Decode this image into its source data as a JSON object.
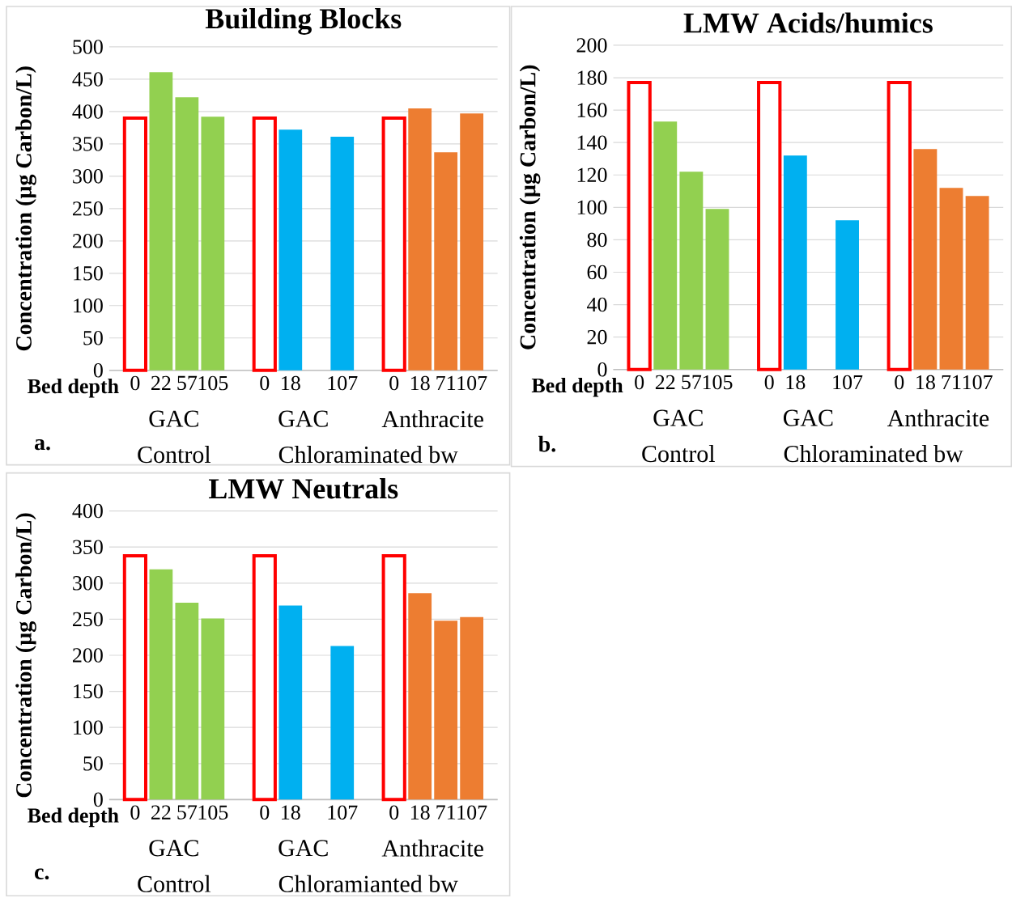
{
  "chart_data": [
    {
      "type": "bar",
      "title": "Building Blocks",
      "xlabel": "Bed depth",
      "ylabel": "Concentration (µg Carbon/L)",
      "categories": [
        "0",
        "22",
        "57",
        "105",
        null,
        "0",
        "18",
        null,
        "107",
        null,
        "0",
        "18",
        "71",
        "107"
      ],
      "series": [
        {
          "color": "#ff0000",
          "values": [
            390,
            null,
            null,
            null,
            null,
            390,
            null,
            null,
            null,
            null,
            390,
            null,
            null,
            null
          ]
        },
        {
          "color": "#92d050",
          "values": [
            null,
            461,
            422,
            392,
            null,
            null,
            null,
            null,
            null,
            null,
            null,
            null,
            null,
            null
          ]
        },
        {
          "color": "#00b0f0",
          "values": [
            null,
            null,
            null,
            null,
            null,
            null,
            372,
            null,
            361,
            null,
            null,
            null,
            null,
            null
          ]
        },
        {
          "color": "#ed7d31",
          "values": [
            null,
            null,
            null,
            null,
            null,
            null,
            null,
            null,
            null,
            null,
            null,
            405,
            337,
            397
          ]
        }
      ],
      "ylim": [
        0,
        500
      ],
      "yticks": [
        0,
        50,
        100,
        150,
        200,
        250,
        300,
        350,
        400,
        450,
        500
      ],
      "grid": "y",
      "annotations": [
        "GAC",
        "GAC",
        "Anthracite",
        "Control",
        "Chloraminated bw",
        "a."
      ]
    },
    {
      "type": "bar",
      "title": "LMW Acids/humics",
      "xlabel": "Bed depth",
      "ylabel": "Concentration (µg Carbon/L)",
      "categories": [
        "0",
        "22",
        "57",
        "105",
        null,
        "0",
        "18",
        null,
        "107",
        null,
        "0",
        "18",
        "71",
        "107"
      ],
      "series": [
        {
          "color": "#ff0000",
          "values": [
            177,
            null,
            null,
            null,
            null,
            177,
            null,
            null,
            null,
            null,
            177,
            null,
            null,
            null
          ]
        },
        {
          "color": "#92d050",
          "values": [
            null,
            153,
            122,
            99,
            null,
            null,
            null,
            null,
            null,
            null,
            null,
            null,
            null,
            null
          ]
        },
        {
          "color": "#00b0f0",
          "values": [
            null,
            null,
            null,
            null,
            null,
            null,
            132,
            null,
            92,
            null,
            null,
            null,
            null,
            null
          ]
        },
        {
          "color": "#ed7d31",
          "values": [
            null,
            null,
            null,
            null,
            null,
            null,
            null,
            null,
            null,
            null,
            null,
            136,
            112,
            107
          ]
        }
      ],
      "ylim": [
        0,
        200
      ],
      "yticks": [
        0,
        20,
        40,
        60,
        80,
        100,
        120,
        140,
        160,
        180,
        200
      ],
      "grid": "y",
      "annotations": [
        "GAC",
        "GAC",
        "Anthracite",
        "Control",
        "Chloraminated bw",
        "b."
      ]
    },
    {
      "type": "bar",
      "title": "LMW Neutrals",
      "xlabel": "Bed depth",
      "ylabel": "Concentration (µg Carbon/L)",
      "categories": [
        "0",
        "22",
        "57",
        "105",
        null,
        "0",
        "18",
        null,
        "107",
        null,
        "0",
        "18",
        "71",
        "107"
      ],
      "series": [
        {
          "color": "#ff0000",
          "values": [
            338,
            null,
            null,
            null,
            null,
            338,
            null,
            null,
            null,
            null,
            338,
            null,
            null,
            null
          ]
        },
        {
          "color": "#92d050",
          "values": [
            null,
            319,
            273,
            251,
            null,
            null,
            null,
            null,
            null,
            null,
            null,
            null,
            null,
            null
          ]
        },
        {
          "color": "#00b0f0",
          "values": [
            null,
            null,
            null,
            null,
            null,
            null,
            269,
            null,
            213,
            null,
            null,
            null,
            null,
            null
          ]
        },
        {
          "color": "#ed7d31",
          "values": [
            null,
            null,
            null,
            null,
            null,
            null,
            null,
            null,
            null,
            null,
            null,
            286,
            248,
            253
          ]
        }
      ],
      "ylim": [
        0,
        400
      ],
      "yticks": [
        0,
        50,
        100,
        150,
        200,
        250,
        300,
        350,
        400
      ],
      "grid": "y",
      "annotations": [
        "GAC",
        "GAC",
        "Anthracite",
        "Control",
        "Chloramianted bw",
        "c."
      ]
    }
  ]
}
